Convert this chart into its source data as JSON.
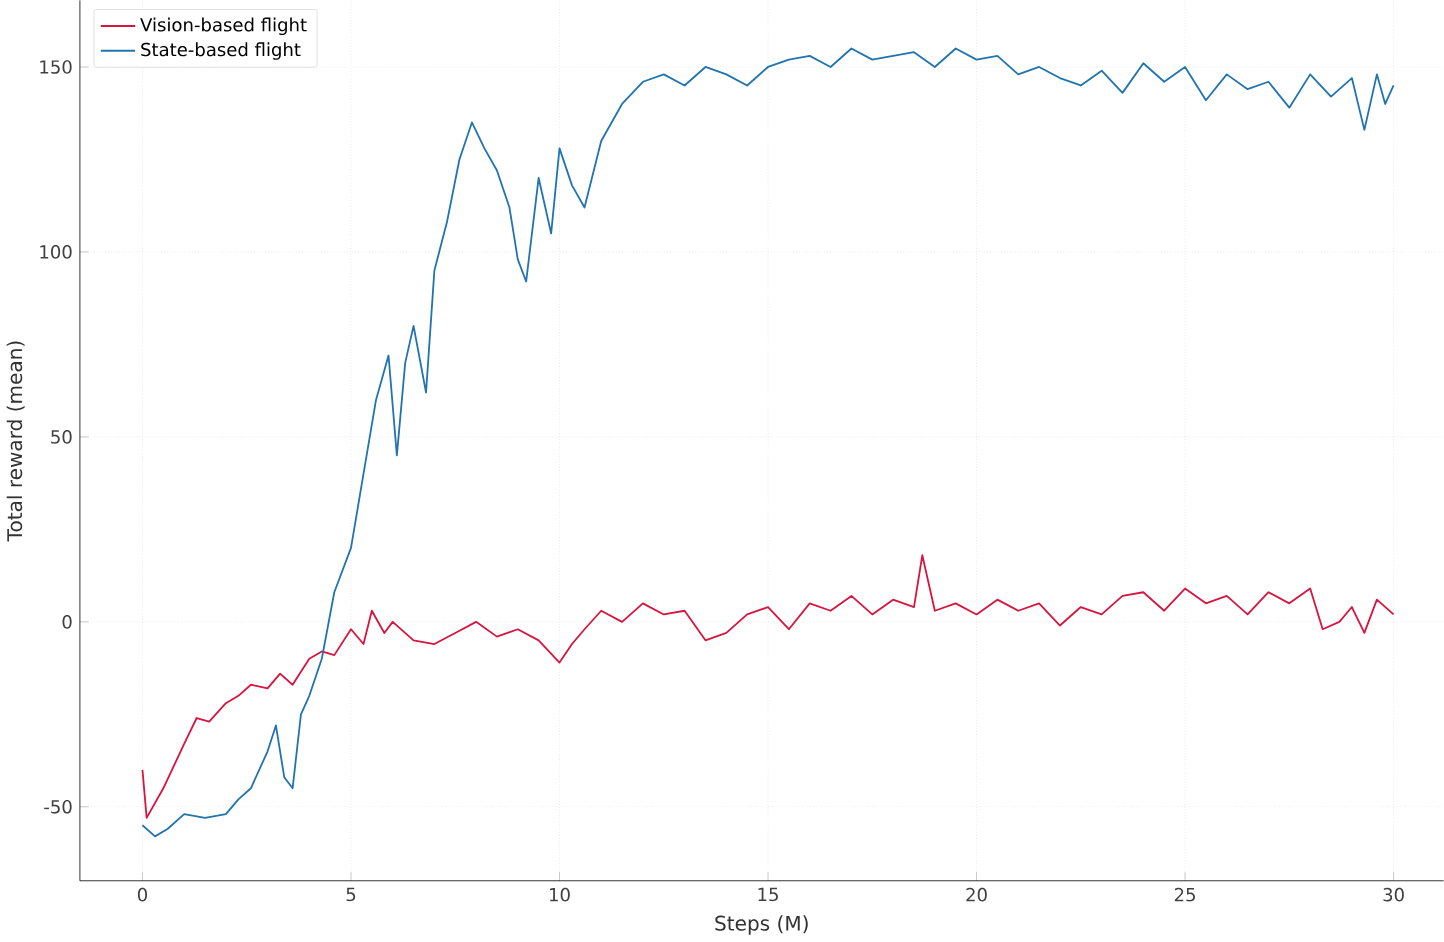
{
  "chart_data": {
    "type": "line",
    "xlabel": "Steps (M)",
    "ylabel": "Total reward (mean)",
    "xlim": [
      -1.5,
      31.2
    ],
    "ylim": [
      -70,
      168
    ],
    "xticks": [
      0,
      5,
      10,
      15,
      20,
      25,
      30
    ],
    "yticks": [
      -50,
      0,
      50,
      100,
      150
    ],
    "grid": true,
    "legend": "top left",
    "marker": "none",
    "line_style": "solid",
    "series": [
      {
        "name": "Vision-based flight",
        "color": "#d6163e",
        "x": [
          0,
          0.1,
          0.5,
          1,
          1.3,
          1.6,
          2,
          2.3,
          2.6,
          3,
          3.3,
          3.6,
          4,
          4.3,
          4.6,
          5,
          5.3,
          5.5,
          5.8,
          6,
          6.5,
          7,
          7.5,
          8,
          8.5,
          9,
          9.5,
          10,
          10.3,
          10.6,
          11,
          11.5,
          12,
          12.5,
          13,
          13.5,
          14,
          14.5,
          15,
          15.5,
          16,
          16.5,
          17,
          17.5,
          18,
          18.5,
          18.7,
          19,
          19.5,
          20,
          20.5,
          21,
          21.5,
          22,
          22.5,
          23,
          23.5,
          24,
          24.5,
          25,
          25.5,
          26,
          26.5,
          27,
          27.5,
          28,
          28.3,
          28.7,
          29,
          29.3,
          29.6,
          30
        ],
        "values": [
          -40,
          -53,
          -45,
          -33,
          -26,
          -27,
          -22,
          -20,
          -17,
          -18,
          -14,
          -17,
          -10,
          -8,
          -9,
          -2,
          -6,
          3,
          -3,
          0,
          -5,
          -6,
          -3,
          0,
          -4,
          -2,
          -5,
          -11,
          -6,
          -2,
          3,
          0,
          5,
          2,
          3,
          -5,
          -3,
          2,
          4,
          -2,
          5,
          3,
          7,
          2,
          6,
          4,
          18,
          3,
          5,
          2,
          6,
          3,
          5,
          -1,
          4,
          2,
          7,
          8,
          3,
          9,
          5,
          7,
          2,
          8,
          5,
          9,
          -2,
          0,
          4,
          -3,
          6,
          2
        ]
      },
      {
        "name": "State-based flight",
        "color": "#2174ae",
        "x": [
          0,
          0.3,
          0.6,
          1,
          1.5,
          2,
          2.3,
          2.6,
          3,
          3.2,
          3.4,
          3.6,
          3.8,
          4,
          4.3,
          4.6,
          5,
          5.3,
          5.6,
          5.9,
          6.1,
          6.3,
          6.5,
          6.8,
          7,
          7.3,
          7.6,
          7.9,
          8.2,
          8.5,
          8.8,
          9,
          9.2,
          9.5,
          9.8,
          10,
          10.3,
          10.6,
          11,
          11.5,
          12,
          12.5,
          13,
          13.5,
          14,
          14.5,
          15,
          15.5,
          16,
          16.5,
          17,
          17.5,
          18,
          18.5,
          19,
          19.5,
          20,
          20.5,
          21,
          21.5,
          22,
          22.5,
          23,
          23.5,
          24,
          24.5,
          25,
          25.5,
          26,
          26.5,
          27,
          27.5,
          28,
          28.5,
          29,
          29.3,
          29.6,
          29.8,
          30
        ],
        "values": [
          -55,
          -58,
          -56,
          -52,
          -53,
          -52,
          -48,
          -45,
          -35,
          -28,
          -42,
          -45,
          -25,
          -20,
          -10,
          8,
          20,
          40,
          60,
          72,
          45,
          70,
          80,
          62,
          95,
          108,
          125,
          135,
          128,
          122,
          112,
          98,
          92,
          120,
          105,
          128,
          118,
          112,
          130,
          140,
          146,
          148,
          145,
          150,
          148,
          145,
          150,
          152,
          153,
          150,
          155,
          152,
          153,
          154,
          150,
          155,
          152,
          153,
          148,
          150,
          147,
          145,
          149,
          143,
          151,
          146,
          150,
          141,
          148,
          144,
          146,
          139,
          148,
          142,
          147,
          133,
          148,
          140,
          145
        ]
      }
    ]
  }
}
